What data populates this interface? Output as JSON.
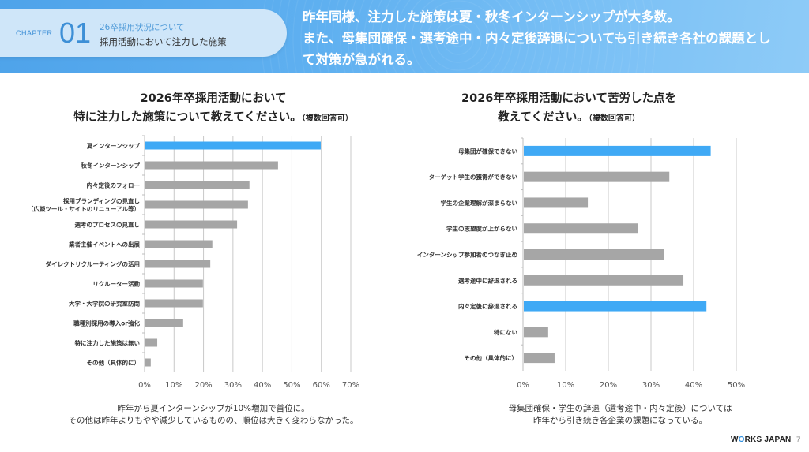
{
  "header": {
    "chapter_label": "CHAPTER",
    "chapter_number": "01",
    "chapter_subtitle": "26卒採用状況について",
    "chapter_title": "採用活動において注力した施策",
    "headline_lines": [
      "昨年同様、注力した施策は夏・秋冬インターンシップが大多数。",
      "また、母集団確保・選考途中・内々定後辞退についても引き続き各社の課題とし",
      "て対策が急がれる。"
    ]
  },
  "chart_data": [
    {
      "type": "bar",
      "orientation": "horizontal",
      "title_lines": [
        "2026年卒採用活動において",
        "特に注力した施策について教えてください。"
      ],
      "title_note": "（複数回答可）",
      "categories": [
        "夏インターンシップ",
        "秋冬インターンシップ",
        "内々定後のフォロー",
        "採用ブランディングの見直し\n（広報ツール・サイトのリニューアル等）",
        "選考のプロセスの見直し",
        "業者主催イベントへの出展",
        "ダイレクトリクルーティングの活用",
        "リクルーター活動",
        "大学・大学院の研究室訪問",
        "職種別採用の導入or強化",
        "特に注力した施策は無い",
        "その他（具体的に）"
      ],
      "values": [
        59.8,
        45.3,
        35.6,
        35.1,
        31.4,
        23.0,
        22.3,
        19.8,
        19.8,
        13.1,
        4.3,
        2.1
      ],
      "highlight": [
        0
      ],
      "unit": "%",
      "xlim": [
        0,
        70
      ],
      "xticks": [
        "0%",
        "10%",
        "20%",
        "30%",
        "40%",
        "50%",
        "60%",
        "70%"
      ],
      "grid": true,
      "xlabel": "",
      "ylabel": "",
      "colors": {
        "highlight": "#3fa9f5",
        "default": "#a6a6a6",
        "grid": "#c8c8c8"
      },
      "caption_lines": [
        "昨年から夏インターンシップが10%増加で首位に。",
        "その他は昨年よりもやや減少しているものの、順位は大きく変わらなかった。"
      ]
    },
    {
      "type": "bar",
      "orientation": "horizontal",
      "title_lines": [
        "2026年卒採用活動において苦労した点を",
        "教えてください。"
      ],
      "title_note": "（複数回答可）",
      "categories": [
        "母集団が確保できない",
        "ターゲット学生の獲得ができない",
        "学生の企業理解が深まらない",
        "学生の志望度が上がらない",
        "インターンシップ参加者のつなぎ止め",
        "選考途中に辞退される",
        "内々定後に辞退される",
        "特にない",
        "その他（具体的に）"
      ],
      "values": [
        44.0,
        34.3,
        15.2,
        27.0,
        33.1,
        37.6,
        43.0,
        5.9,
        7.4
      ],
      "highlight": [
        0,
        6
      ],
      "unit": "%",
      "xlim": [
        0,
        50
      ],
      "xticks": [
        "0%",
        "10%",
        "20%",
        "30%",
        "40%",
        "50%"
      ],
      "grid": true,
      "xlabel": "",
      "ylabel": "",
      "colors": {
        "highlight": "#3fa9f5",
        "default": "#a6a6a6",
        "grid": "#c8c8c8"
      },
      "caption_lines": [
        "母集団確保・学生の辞退（選考途中・内々定後）については",
        "昨年から引き続き各企業の課題になっている。"
      ]
    }
  ],
  "footer": {
    "logo_prefix": "W",
    "logo_o": "O",
    "logo_suffix": "RKS JAPAN",
    "page_number": "7"
  }
}
